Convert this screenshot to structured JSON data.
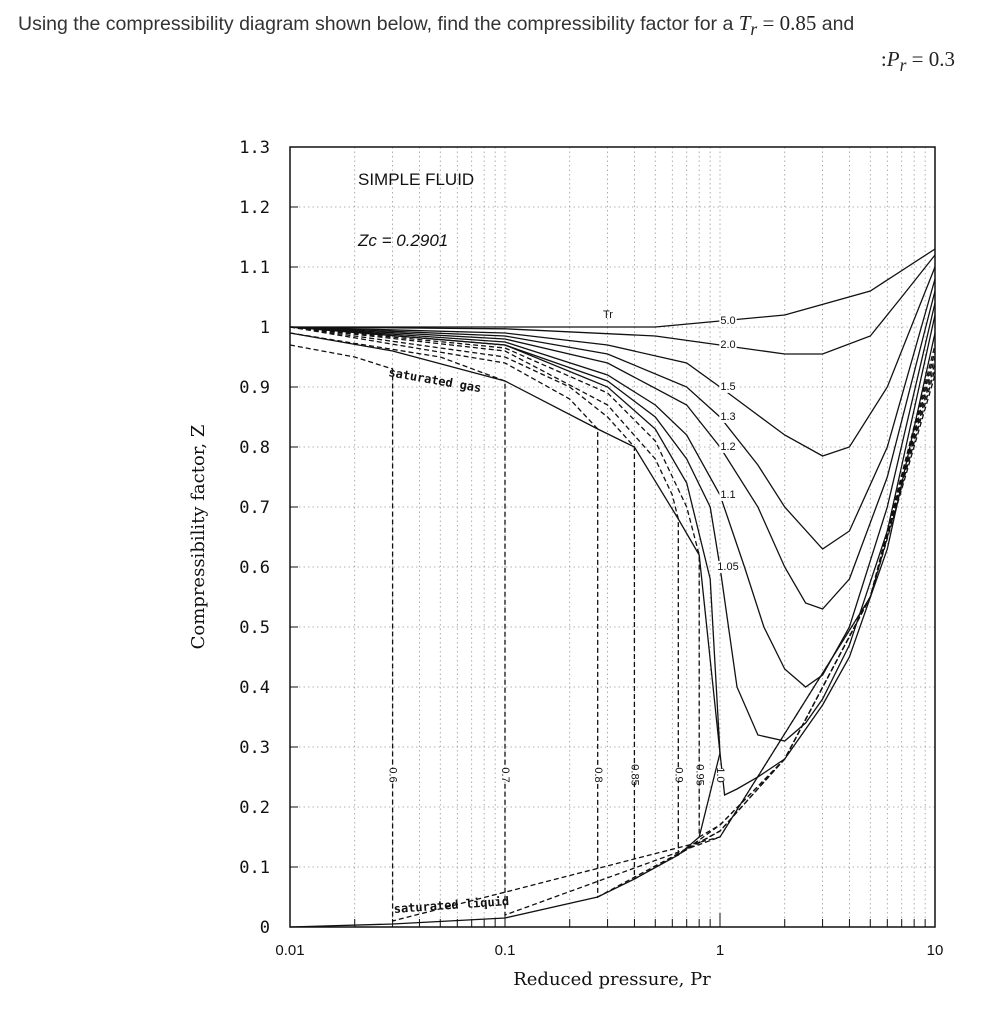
{
  "question": {
    "text1": "Using the compressibility diagram shown below, find the compressibility factor for a ",
    "tr_symbol": "T",
    "tr_sub": "r",
    "tr_value": " = 0.85",
    "and": " and",
    "prefix": ":",
    "pr_symbol": "P",
    "pr_sub": "r",
    "pr_value": " = 0.3"
  },
  "chart_data": {
    "type": "line",
    "title": "SIMPLE FLUID",
    "subtitle": "Zc = 0.2901",
    "xlabel": "Reduced pressure, Pr",
    "ylabel": "Compressibility factor, Z",
    "xscale": "log",
    "xlim": [
      0.01,
      10
    ],
    "ylim": [
      0,
      1.3
    ],
    "x_ticks": [
      "0.01",
      "0.1",
      "1",
      "10"
    ],
    "y_ticks": [
      "0",
      "0.1",
      "0.2",
      "0.3",
      "0.4",
      "0.5",
      "0.6",
      "0.7",
      "0.8",
      "0.9",
      "1",
      "1.1",
      "1.2",
      "1.3"
    ],
    "grid": true,
    "tr_header": "Tr",
    "annotations": {
      "saturated_gas": "saturated gas",
      "saturated_liquid": "saturated liquid"
    },
    "series": [
      {
        "name": "5.0",
        "style": "solid",
        "x": [
          0.01,
          0.1,
          0.5,
          1,
          2,
          5,
          10
        ],
        "y": [
          1.0,
          1.0,
          1.0,
          1.01,
          1.02,
          1.06,
          1.13
        ]
      },
      {
        "name": "2.0",
        "style": "solid",
        "x": [
          0.01,
          0.1,
          0.5,
          1,
          2,
          3,
          5,
          7,
          10
        ],
        "y": [
          1.0,
          0.997,
          0.985,
          0.97,
          0.955,
          0.955,
          0.985,
          1.05,
          1.12
        ]
      },
      {
        "name": "1.5",
        "style": "solid",
        "x": [
          0.01,
          0.1,
          0.3,
          0.7,
          1,
          2,
          3,
          4,
          6,
          10
        ],
        "y": [
          1.0,
          0.99,
          0.97,
          0.94,
          0.9,
          0.82,
          0.785,
          0.8,
          0.9,
          1.1
        ]
      },
      {
        "name": "1.3",
        "style": "solid",
        "x": [
          0.01,
          0.1,
          0.3,
          0.7,
          1,
          1.5,
          2,
          3,
          4,
          6,
          10
        ],
        "y": [
          1.0,
          0.985,
          0.955,
          0.9,
          0.85,
          0.77,
          0.7,
          0.63,
          0.66,
          0.8,
          1.08
        ]
      },
      {
        "name": "1.2",
        "style": "solid",
        "x": [
          0.01,
          0.1,
          0.3,
          0.7,
          1,
          1.5,
          2,
          2.5,
          3,
          4,
          6,
          10
        ],
        "y": [
          1.0,
          0.98,
          0.94,
          0.87,
          0.8,
          0.7,
          0.6,
          0.54,
          0.53,
          0.58,
          0.75,
          1.06
        ]
      },
      {
        "name": "1.1",
        "style": "solid",
        "x": [
          0.01,
          0.1,
          0.3,
          0.5,
          0.7,
          1,
          1.3,
          1.6,
          2,
          2.5,
          3,
          4,
          6,
          10
        ],
        "y": [
          1.0,
          0.975,
          0.92,
          0.87,
          0.82,
          0.72,
          0.6,
          0.5,
          0.43,
          0.4,
          0.42,
          0.5,
          0.7,
          1.04
        ]
      },
      {
        "name": "1.05",
        "style": "solid",
        "x": [
          0.01,
          0.1,
          0.3,
          0.5,
          0.7,
          0.9,
          1,
          1.2,
          1.5,
          2,
          2.5,
          3,
          4,
          6,
          10
        ],
        "y": [
          1.0,
          0.97,
          0.91,
          0.85,
          0.78,
          0.7,
          0.6,
          0.4,
          0.32,
          0.31,
          0.34,
          0.38,
          0.47,
          0.66,
          1.02
        ]
      },
      {
        "name": "1.0",
        "style": "solid",
        "x": [
          0.01,
          0.1,
          0.3,
          0.5,
          0.7,
          0.9,
          1,
          1.05,
          1.2,
          1.5,
          2,
          3,
          4,
          6,
          10
        ],
        "y": [
          1.0,
          0.97,
          0.9,
          0.83,
          0.74,
          0.58,
          0.29,
          0.22,
          0.23,
          0.25,
          0.28,
          0.37,
          0.45,
          0.63,
          0.99
        ]
      },
      {
        "name": "0.95",
        "style": "dashed",
        "x": [
          0.01,
          0.1,
          0.3,
          0.5,
          0.7,
          0.8,
          0.8,
          1,
          2,
          5,
          10
        ],
        "y": [
          1.0,
          0.965,
          0.89,
          0.81,
          0.7,
          0.62,
          0.15,
          0.17,
          0.28,
          0.55,
          0.97
        ]
      },
      {
        "name": "0.9",
        "style": "dashed",
        "x": [
          0.01,
          0.1,
          0.3,
          0.5,
          0.6,
          0.64,
          0.64,
          1,
          2,
          5,
          10
        ],
        "y": [
          1.0,
          0.96,
          0.87,
          0.78,
          0.72,
          0.68,
          0.12,
          0.17,
          0.28,
          0.55,
          0.96
        ]
      },
      {
        "name": "0.85",
        "style": "dashed",
        "x": [
          0.01,
          0.1,
          0.2,
          0.3,
          0.4,
          0.4,
          1,
          2,
          5,
          10
        ],
        "y": [
          1.0,
          0.95,
          0.9,
          0.85,
          0.8,
          0.08,
          0.16,
          0.28,
          0.55,
          0.95
        ]
      },
      {
        "name": "0.8",
        "style": "dashed",
        "x": [
          0.01,
          0.1,
          0.2,
          0.27,
          0.27,
          1,
          2,
          5,
          10
        ],
        "y": [
          1.0,
          0.94,
          0.88,
          0.83,
          0.05,
          0.16,
          0.28,
          0.55,
          0.94
        ]
      },
      {
        "name": "0.7",
        "style": "dashed",
        "x": [
          0.01,
          0.05,
          0.1,
          0.1,
          1,
          5,
          10
        ],
        "y": [
          0.99,
          0.95,
          0.91,
          0.02,
          0.15,
          0.55,
          0.93
        ]
      },
      {
        "name": "0.6",
        "style": "dashed",
        "x": [
          0.01,
          0.02,
          0.03,
          0.03,
          1,
          5,
          10
        ],
        "y": [
          0.97,
          0.95,
          0.93,
          0.01,
          0.15,
          0.55,
          0.92
        ]
      },
      {
        "name": "saturated gas",
        "style": "solid",
        "x": [
          0.01,
          0.03,
          0.1,
          0.27,
          0.4,
          0.64,
          0.8,
          1
        ],
        "y": [
          0.99,
          0.96,
          0.91,
          0.83,
          0.8,
          0.68,
          0.62,
          0.29
        ]
      },
      {
        "name": "saturated liquid",
        "style": "solid",
        "x": [
          0.01,
          0.03,
          0.1,
          0.27,
          0.4,
          0.64,
          0.8,
          1
        ],
        "y": [
          0.0,
          0.005,
          0.015,
          0.05,
          0.08,
          0.12,
          0.15,
          0.29
        ]
      }
    ]
  }
}
